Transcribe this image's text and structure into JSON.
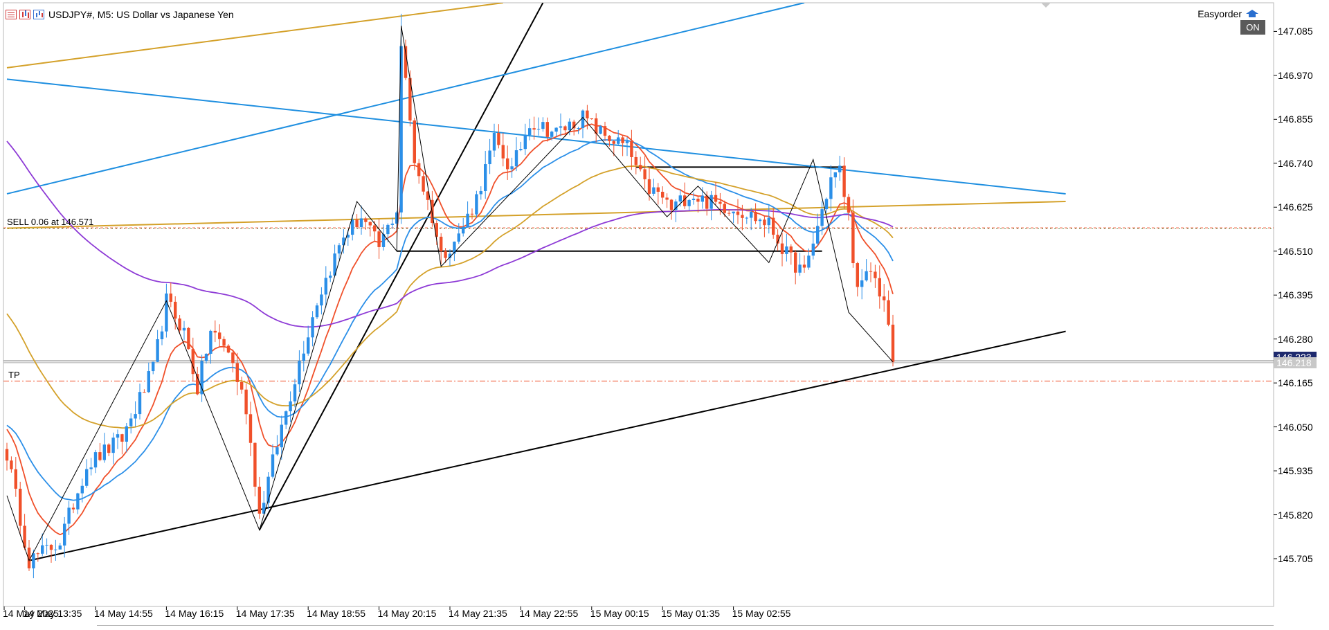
{
  "header": {
    "title": "USDJPY#, M5:  US Dollar vs Japanese Yen"
  },
  "expert": {
    "name": "Easyorder",
    "status": "ON"
  },
  "orders": {
    "sell_label": "SELL  0.06 at 146.571",
    "sell_price": 146.571,
    "tp_label": "TP",
    "tp_price": 146.17
  },
  "prices": {
    "bid": "146.223",
    "ask": "146.218",
    "bid_value": 146.223,
    "ask_value": 146.218
  },
  "colors": {
    "bull": "#2b8fe8",
    "bear": "#f0502a",
    "ma_fast": "#f0502a",
    "ma_mid": "#2b8fe8",
    "ma_slow": "#d4a12a",
    "ma_long": "#8e3bd6",
    "trend_blue": "#1f8fe0",
    "trend_gold": "#d4a12a",
    "line_black": "#000000",
    "sell_line": "#f0502a",
    "tp_line": "#f0502a"
  },
  "chart_data": {
    "type": "candlestick",
    "symbol": "USDJPY#",
    "timeframe": "M5",
    "ylim": [
      145.58,
      147.16
    ],
    "y_ticks": [
      "147.085",
      "146.970",
      "146.855",
      "146.740",
      "146.625",
      "146.510",
      "146.395",
      "146.280",
      "146.165",
      "146.050",
      "145.935",
      "145.820",
      "145.705"
    ],
    "x_ticks": [
      "14 May 2025",
      "14 May 13:35",
      "14 May 14:55",
      "14 May 16:15",
      "14 May 17:35",
      "14 May 18:55",
      "14 May 20:15",
      "14 May 21:35",
      "14 May 22:55",
      "15 May 00:15",
      "15 May 01:35",
      "15 May 02:55"
    ],
    "bar_count": 232,
    "anchors": [
      [
        0,
        145.98
      ],
      [
        5,
        145.7
      ],
      [
        12,
        145.75
      ],
      [
        18,
        145.95
      ],
      [
        26,
        146.02
      ],
      [
        33,
        146.2
      ],
      [
        36,
        146.38
      ],
      [
        40,
        146.3
      ],
      [
        43,
        146.15
      ],
      [
        46,
        146.3
      ],
      [
        50,
        146.25
      ],
      [
        54,
        146.1
      ],
      [
        57,
        145.82
      ],
      [
        62,
        146.05
      ],
      [
        66,
        146.22
      ],
      [
        70,
        146.38
      ],
      [
        76,
        146.55
      ],
      [
        80,
        146.6
      ],
      [
        84,
        146.52
      ],
      [
        88,
        146.62
      ],
      [
        89,
        147.05
      ],
      [
        92,
        146.75
      ],
      [
        96,
        146.6
      ],
      [
        98,
        146.5
      ],
      [
        102,
        146.55
      ],
      [
        106,
        146.65
      ],
      [
        110,
        146.8
      ],
      [
        114,
        146.72
      ],
      [
        118,
        146.85
      ],
      [
        124,
        146.82
      ],
      [
        130,
        146.86
      ],
      [
        134,
        146.82
      ],
      [
        140,
        146.78
      ],
      [
        144,
        146.68
      ],
      [
        148,
        146.65
      ],
      [
        150,
        146.62
      ],
      [
        154,
        146.66
      ],
      [
        158,
        146.64
      ],
      [
        165,
        146.62
      ],
      [
        172,
        146.58
      ],
      [
        176,
        146.5
      ],
      [
        180,
        146.45
      ],
      [
        186,
        146.7
      ],
      [
        188,
        146.72
      ],
      [
        190,
        146.6
      ],
      [
        192,
        146.4
      ],
      [
        195,
        146.46
      ],
      [
        198,
        146.38
      ],
      [
        200,
        146.22
      ]
    ],
    "moving_averages": [
      {
        "period": 10,
        "color": "#f0502a"
      },
      {
        "period": 25,
        "color": "#2b8fe8"
      },
      {
        "period": 50,
        "color": "#d4a12a"
      },
      {
        "period": 120,
        "color": "#8e3bd6"
      }
    ],
    "zigzag": [
      [
        0,
        145.87
      ],
      [
        5,
        145.7
      ],
      [
        36,
        146.38
      ],
      [
        57,
        145.78
      ],
      [
        79,
        146.64
      ],
      [
        88,
        146.51
      ],
      [
        89,
        147.1
      ],
      [
        98,
        146.47
      ],
      [
        130,
        146.86
      ],
      [
        149,
        146.6
      ],
      [
        156,
        146.68
      ],
      [
        172,
        146.48
      ],
      [
        182,
        146.75
      ],
      [
        190,
        146.35
      ],
      [
        200,
        146.22
      ]
    ],
    "trendlines": [
      {
        "style": "thick-black",
        "points": [
          [
            5,
            145.7
          ],
          [
            239,
            146.3
          ]
        ]
      },
      {
        "style": "thick-black",
        "points": [
          [
            57,
            145.78
          ],
          [
            121,
            147.16
          ]
        ]
      },
      {
        "style": "black",
        "points": [
          [
            88,
            146.51
          ],
          [
            184,
            146.51
          ]
        ]
      },
      {
        "style": "black",
        "points": [
          [
            142,
            146.73
          ],
          [
            189,
            146.73
          ]
        ]
      },
      {
        "style": "blue",
        "points": [
          [
            0,
            146.96
          ],
          [
            239,
            146.66
          ]
        ]
      },
      {
        "style": "blue",
        "points": [
          [
            0,
            146.66
          ],
          [
            180,
            147.16
          ]
        ]
      },
      {
        "style": "gold",
        "points": [
          [
            0,
            146.57
          ],
          [
            239,
            146.64
          ]
        ]
      },
      {
        "style": "gold",
        "points": [
          [
            0,
            146.99
          ],
          [
            112,
            147.16
          ]
        ]
      }
    ]
  }
}
